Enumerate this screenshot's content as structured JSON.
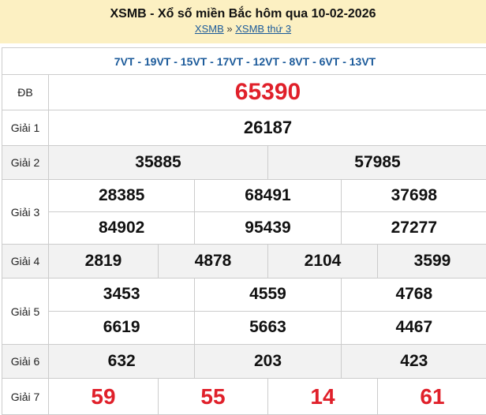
{
  "header": {
    "title": "XSMB - Xổ số miền Bắc hôm qua 10-02-2026",
    "crumb_home": "XSMB",
    "separator": "»",
    "crumb_day": "XSMB thứ 3"
  },
  "codes": "7VT - 19VT - 15VT - 17VT - 12VT - 8VT - 6VT - 13VT",
  "colors": {
    "header_bg": "#fcf0c2",
    "link": "#1b5a9a",
    "special": "#e0202a"
  },
  "prizes": [
    {
      "label": "ĐB",
      "numbers": [
        "65390"
      ]
    },
    {
      "label": "Giải 1",
      "numbers": [
        "26187"
      ]
    },
    {
      "label": "Giải 2",
      "numbers": [
        "35885",
        "57985"
      ]
    },
    {
      "label": "Giải 3",
      "numbers": [
        "28385",
        "68491",
        "37698",
        "84902",
        "95439",
        "27277"
      ]
    },
    {
      "label": "Giải 4",
      "numbers": [
        "2819",
        "4878",
        "2104",
        "3599"
      ]
    },
    {
      "label": "Giải 5",
      "numbers": [
        "3453",
        "4559",
        "4768",
        "6619",
        "5663",
        "4467"
      ]
    },
    {
      "label": "Giải 6",
      "numbers": [
        "632",
        "203",
        "423"
      ]
    },
    {
      "label": "Giải 7",
      "numbers": [
        "59",
        "55",
        "14",
        "61"
      ]
    }
  ]
}
